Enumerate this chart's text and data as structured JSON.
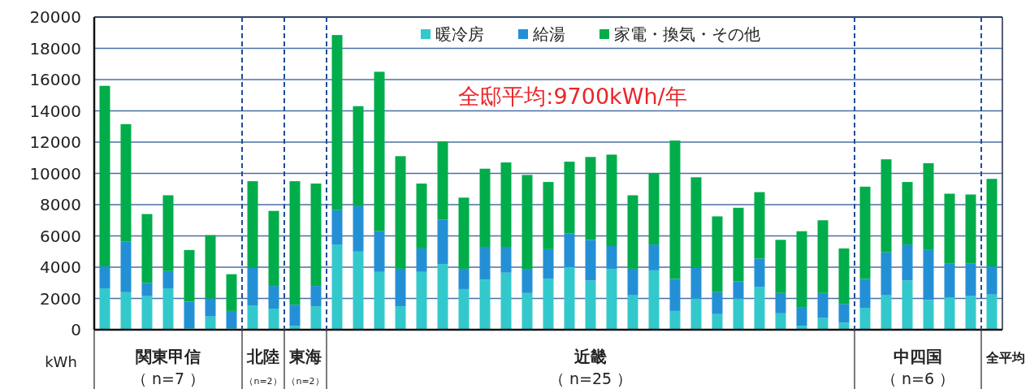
{
  "chart_data": {
    "type": "bar",
    "stacked": true,
    "ylabel": "kWh",
    "categories": [
      null,
      null,
      null,
      null,
      null,
      null,
      null,
      null,
      null,
      null,
      null,
      null,
      null,
      null,
      null,
      null,
      null,
      null,
      null,
      null,
      null,
      null,
      null,
      null,
      null,
      null,
      null,
      null,
      null,
      null,
      null,
      null,
      null,
      null,
      null,
      null,
      null,
      null,
      null,
      null,
      null,
      null,
      null
    ],
    "series": [
      {
        "name": "暖冷房",
        "color": "#33c9cc",
        "values": [
          2650,
          2400,
          2150,
          2650,
          100,
          850,
          100,
          1550,
          1350,
          250,
          1500,
          5450,
          5000,
          3700,
          1500,
          3700,
          4200,
          2600,
          3200,
          3650,
          2350,
          3250,
          4000,
          3150,
          3900,
          2200,
          3800,
          1200,
          2000,
          1000,
          2000,
          2750,
          1050,
          250,
          750,
          450,
          1400,
          2200,
          3150,
          1900,
          2050,
          2150,
          2250
        ]
      },
      {
        "name": "給湯",
        "color": "#2390d6",
        "values": [
          1400,
          3250,
          850,
          1100,
          1700,
          1150,
          1100,
          2400,
          1450,
          1350,
          1300,
          2200,
          2900,
          2600,
          2400,
          1500,
          2850,
          1300,
          2100,
          1650,
          1500,
          1900,
          2150,
          2600,
          1450,
          1700,
          1650,
          2050,
          1950,
          1400,
          1100,
          1800,
          1300,
          1200,
          1600,
          1200,
          1850,
          2750,
          2300,
          3200,
          2200,
          2100,
          1800
        ]
      },
      {
        "name": "家電・換気・その他",
        "color": "#00ad4a",
        "values": [
          11550,
          7500,
          4400,
          4850,
          3300,
          4050,
          2350,
          5550,
          4800,
          7900,
          6550,
          11200,
          6400,
          10200,
          7200,
          4150,
          5000,
          4550,
          5000,
          5400,
          6050,
          4300,
          4600,
          5300,
          5850,
          4700,
          4550,
          8850,
          5800,
          4850,
          4700,
          4250,
          3400,
          4850,
          4650,
          3550,
          5900,
          5950,
          4000,
          5550,
          4450,
          4400,
          5600
        ]
      }
    ],
    "ylim": [
      0,
      20000
    ],
    "yticks": [
      0,
      2000,
      4000,
      6000,
      8000,
      10000,
      12000,
      14000,
      16000,
      18000,
      20000
    ],
    "grid": "y",
    "legend": "top",
    "annotations": [
      "関東甲信",
      "北陸",
      "東海",
      "近畿",
      "中四国",
      "全平均",
      "（ n=7 ）",
      "（n=2）",
      "（n=2）",
      "（ n=25 ）",
      "（ n=6 ）",
      "全邸平均:9700kWh/年"
    ]
  }
}
